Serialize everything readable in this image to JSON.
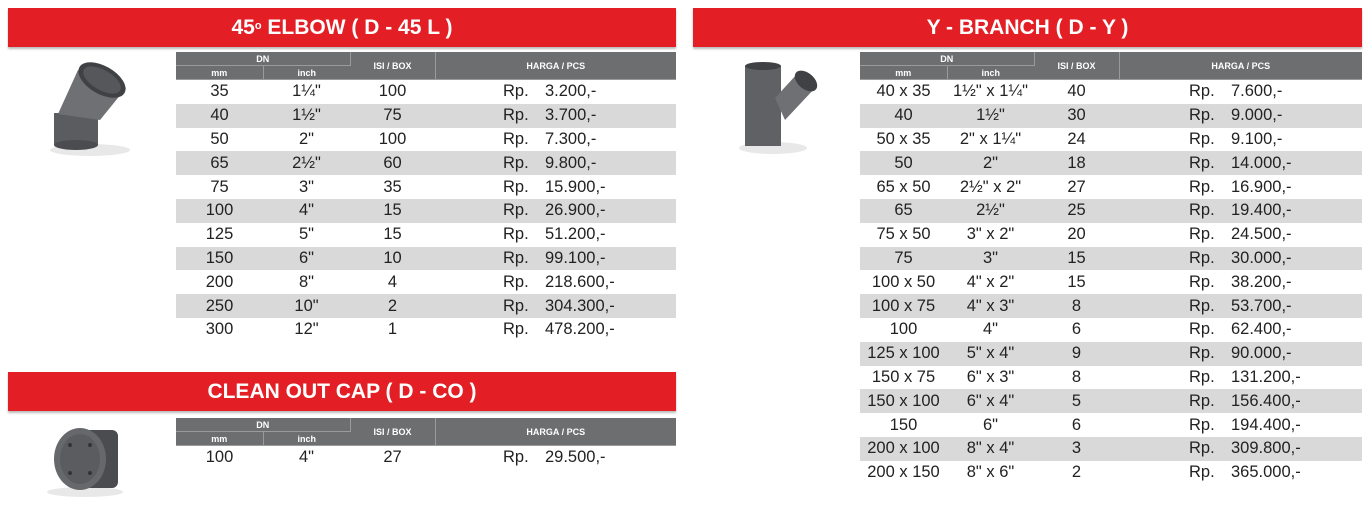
{
  "colors": {
    "banner": "#e31e24",
    "header": "#6d6e70",
    "row_alt": "#d9d9d9"
  },
  "headers": {
    "dn": "DN",
    "mm": "mm",
    "inch": "inch",
    "isi": "ISI / BOX",
    "harga": "HARGA / PCS"
  },
  "currency": "Rp.",
  "elbow": {
    "title_pre": "45",
    "title_sup": "o",
    "title_post": " ELBOW ( D - 45 L )",
    "rows": [
      {
        "mm": "35",
        "inch": "1¼\"",
        "isi": "100",
        "price": "3.200,-"
      },
      {
        "mm": "40",
        "inch": "1½\"",
        "isi": "75",
        "price": "3.700,-"
      },
      {
        "mm": "50",
        "inch": "2\"",
        "isi": "100",
        "price": "7.300,-"
      },
      {
        "mm": "65",
        "inch": "2½\"",
        "isi": "60",
        "price": "9.800,-"
      },
      {
        "mm": "75",
        "inch": "3\"",
        "isi": "35",
        "price": "15.900,-"
      },
      {
        "mm": "100",
        "inch": "4\"",
        "isi": "15",
        "price": "26.900,-"
      },
      {
        "mm": "125",
        "inch": "5\"",
        "isi": "15",
        "price": "51.200,-"
      },
      {
        "mm": "150",
        "inch": "6\"",
        "isi": "10",
        "price": "99.100,-"
      },
      {
        "mm": "200",
        "inch": "8\"",
        "isi": "4",
        "price": "218.600,-"
      },
      {
        "mm": "250",
        "inch": "10\"",
        "isi": "2",
        "price": "304.300,-"
      },
      {
        "mm": "300",
        "inch": "12\"",
        "isi": "1",
        "price": "478.200,-"
      }
    ]
  },
  "cleanout": {
    "title": "CLEAN OUT CAP ( D - CO )",
    "rows": [
      {
        "mm": "100",
        "inch": "4\"",
        "isi": "27",
        "price": "29.500,-"
      }
    ]
  },
  "ybranch": {
    "title": "Y - BRANCH ( D - Y )",
    "rows": [
      {
        "mm": "40 x 35",
        "inch": "1½\" x 1¼\"",
        "isi": "40",
        "price": "7.600,-"
      },
      {
        "mm": "40",
        "inch": "1½\"",
        "isi": "30",
        "price": "9.000,-"
      },
      {
        "mm": "50 x 35",
        "inch": "2\" x 1¼\"",
        "isi": "24",
        "price": "9.100,-"
      },
      {
        "mm": "50",
        "inch": "2\"",
        "isi": "18",
        "price": "14.000,-"
      },
      {
        "mm": "65 x 50",
        "inch": "2½\" x 2\"",
        "isi": "27",
        "price": "16.900,-"
      },
      {
        "mm": "65",
        "inch": "2½\"",
        "isi": "25",
        "price": "19.400,-"
      },
      {
        "mm": "75 x 50",
        "inch": "3\" x 2\"",
        "isi": "20",
        "price": "24.500,-"
      },
      {
        "mm": "75",
        "inch": "3\"",
        "isi": "15",
        "price": "30.000,-"
      },
      {
        "mm": "100 x 50",
        "inch": "4\" x 2\"",
        "isi": "15",
        "price": "38.200,-"
      },
      {
        "mm": "100 x 75",
        "inch": "4\" x 3\"",
        "isi": "8",
        "price": "53.700,-"
      },
      {
        "mm": "100",
        "inch": "4\"",
        "isi": "6",
        "price": "62.400,-"
      },
      {
        "mm": "125 x 100",
        "inch": "5\" x 4\"",
        "isi": "9",
        "price": "90.000,-"
      },
      {
        "mm": "150 x 75",
        "inch": "6\" x 3\"",
        "isi": "8",
        "price": "131.200,-"
      },
      {
        "mm": "150 x 100",
        "inch": "6\" x 4\"",
        "isi": "5",
        "price": "156.400,-"
      },
      {
        "mm": "150",
        "inch": "6\"",
        "isi": "6",
        "price": "194.400,-"
      },
      {
        "mm": "200 x 100",
        "inch": "8\" x 4\"",
        "isi": "3",
        "price": "309.800,-"
      },
      {
        "mm": "200 x 150",
        "inch": "8\" x 6\"",
        "isi": "2",
        "price": "365.000,-"
      }
    ]
  }
}
